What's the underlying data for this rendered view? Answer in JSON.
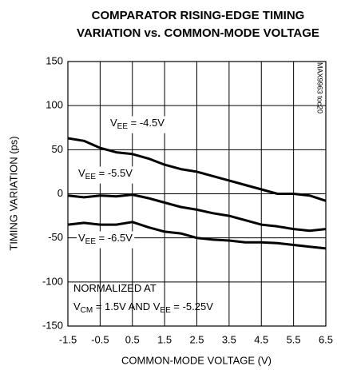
{
  "chart_data": {
    "type": "line",
    "title": [
      "COMPARATOR RISING-EDGE TIMING",
      "VARIATION vs. COMMON-MODE VOLTAGE"
    ],
    "x_label": "COMMON-MODE VOLTAGE (V)",
    "y_label": "TIMING VARIATION (ps)",
    "side_note": "MAX9963 toc20",
    "x": [
      -1.5,
      -1.0,
      -0.5,
      0.0,
      0.5,
      1.0,
      1.5,
      2.0,
      2.5,
      3.0,
      3.5,
      4.0,
      4.5,
      5.0,
      5.5,
      6.0,
      6.5
    ],
    "series": [
      {
        "color": "#000000",
        "values": [
          63,
          60,
          52,
          47,
          45,
          40,
          33,
          28,
          25,
          20,
          15,
          10,
          5,
          0,
          0,
          -2,
          -8
        ]
      },
      {
        "color": "#000000",
        "values": [
          -2,
          -4,
          -2,
          -3,
          -1,
          -5,
          -10,
          -15,
          -18,
          -22,
          -25,
          -30,
          -35,
          -37,
          -40,
          -42,
          -40
        ]
      },
      {
        "color": "#000000",
        "values": [
          -35,
          -33,
          -35,
          -35,
          -32,
          -38,
          -43,
          -45,
          -50,
          -52,
          -53,
          -55,
          -55,
          -56,
          -58,
          -60,
          -62
        ]
      }
    ],
    "annotations": [
      {
        "parts": [
          "V",
          "EE",
          " = -4.5V"
        ]
      },
      {
        "parts": [
          "V",
          "EE",
          " = -5.5V"
        ]
      },
      {
        "parts": [
          "V",
          "EE",
          " = -6.5V"
        ]
      },
      {
        "parts": [
          "NORMALIZED AT"
        ]
      },
      {
        "parts": [
          "V",
          "CM",
          " = 1.5V AND V",
          "EE",
          " = -5.25V"
        ]
      }
    ],
    "xlim": [
      -1.5,
      6.5
    ],
    "ylim": [
      -150,
      150
    ],
    "xticks": [
      -1.5,
      -0.5,
      0.5,
      1.5,
      2.5,
      3.5,
      4.5,
      5.5,
      6.5
    ],
    "yticks": [
      -150,
      -100,
      -50,
      0,
      50,
      100,
      150
    ],
    "grid": true
  }
}
